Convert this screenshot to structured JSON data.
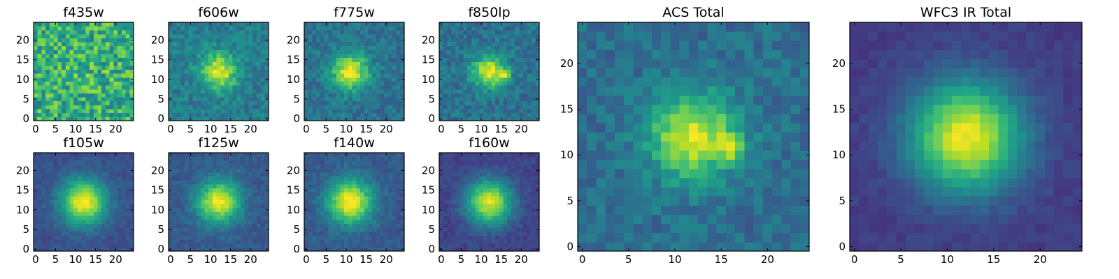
{
  "figure": {
    "colormap": "viridis",
    "grid": false,
    "legend": "none"
  },
  "chart_data": [
    {
      "type": "heatmap",
      "title": "f435w",
      "size": 25,
      "peak": [
        12,
        12
      ],
      "sigma": 5.0,
      "amp": 0.05,
      "noise": 0.45,
      "base": 0.62,
      "extra_peak": null,
      "xticks": [
        0,
        5,
        10,
        15,
        20
      ],
      "yticks": [
        0,
        5,
        10,
        15,
        20
      ],
      "xlim": [
        0,
        24
      ],
      "ylim": [
        0,
        24
      ]
    },
    {
      "type": "heatmap",
      "title": "f606w",
      "size": 25,
      "peak": [
        12,
        12
      ],
      "sigma": 3.2,
      "amp": 0.55,
      "noise": 0.22,
      "base": 0.42,
      "extra_peak": null,
      "xticks": [
        0,
        5,
        10,
        15,
        20
      ],
      "yticks": [
        0,
        5,
        10,
        15,
        20
      ],
      "xlim": [
        0,
        24
      ],
      "ylim": [
        0,
        24
      ]
    },
    {
      "type": "heatmap",
      "title": "f775w",
      "size": 25,
      "peak": [
        11,
        12
      ],
      "sigma": 3.2,
      "amp": 0.6,
      "noise": 0.2,
      "base": 0.38,
      "extra_peak": null,
      "xticks": [
        0,
        5,
        10,
        15,
        20
      ],
      "yticks": [
        0,
        5,
        10,
        15,
        20
      ],
      "xlim": [
        0,
        24
      ],
      "ylim": [
        0,
        24
      ]
    },
    {
      "type": "heatmap",
      "title": "f850lp",
      "size": 25,
      "peak": [
        12,
        12
      ],
      "sigma": 3.0,
      "amp": 0.55,
      "noise": 0.22,
      "base": 0.38,
      "extra_peak": [
        16,
        11
      ],
      "xticks": [
        0,
        5,
        10,
        15,
        20
      ],
      "yticks": [
        0,
        5,
        10,
        15,
        20
      ],
      "xlim": [
        0,
        24
      ],
      "ylim": [
        0,
        24
      ]
    },
    {
      "type": "heatmap",
      "title": "f105w",
      "size": 25,
      "peak": [
        12,
        12
      ],
      "sigma": 4.0,
      "amp": 0.75,
      "noise": 0.1,
      "base": 0.25,
      "extra_peak": null,
      "xticks": [
        0,
        5,
        10,
        15,
        20
      ],
      "yticks": [
        0,
        5,
        10,
        15,
        20
      ],
      "xlim": [
        0,
        24
      ],
      "ylim": [
        0,
        24
      ]
    },
    {
      "type": "heatmap",
      "title": "f125w",
      "size": 25,
      "peak": [
        12,
        12
      ],
      "sigma": 3.8,
      "amp": 0.7,
      "noise": 0.12,
      "base": 0.28,
      "extra_peak": null,
      "xticks": [
        0,
        5,
        10,
        15,
        20
      ],
      "yticks": [
        0,
        5,
        10,
        15,
        20
      ],
      "xlim": [
        0,
        24
      ],
      "ylim": [
        0,
        24
      ]
    },
    {
      "type": "heatmap",
      "title": "f140w",
      "size": 25,
      "peak": [
        11,
        12
      ],
      "sigma": 4.0,
      "amp": 0.72,
      "noise": 0.12,
      "base": 0.28,
      "extra_peak": null,
      "xticks": [
        0,
        5,
        10,
        15,
        20
      ],
      "yticks": [
        0,
        5,
        10,
        15,
        20
      ],
      "xlim": [
        0,
        24
      ],
      "ylim": [
        0,
        24
      ]
    },
    {
      "type": "heatmap",
      "title": "f160w",
      "size": 25,
      "peak": [
        12,
        12
      ],
      "sigma": 4.0,
      "amp": 0.75,
      "noise": 0.1,
      "base": 0.2,
      "extra_peak": null,
      "xticks": [
        0,
        5,
        10,
        15,
        20
      ],
      "yticks": [
        0,
        5,
        10,
        15,
        20
      ],
      "xlim": [
        0,
        24
      ],
      "ylim": [
        0,
        24
      ]
    },
    {
      "type": "heatmap",
      "title": "ACS Total",
      "size": 25,
      "peak": [
        12,
        12
      ],
      "sigma": 3.3,
      "amp": 0.6,
      "noise": 0.18,
      "base": 0.36,
      "extra_peak": [
        16,
        11
      ],
      "xticks": [
        0,
        5,
        10,
        15,
        20
      ],
      "yticks": [
        0,
        5,
        10,
        15,
        20
      ],
      "xlim": [
        0,
        24
      ],
      "ylim": [
        0,
        24
      ]
    },
    {
      "type": "heatmap",
      "title": "WFC3 IR Total",
      "size": 25,
      "peak": [
        12,
        12
      ],
      "sigma": 4.2,
      "amp": 0.8,
      "noise": 0.07,
      "base": 0.18,
      "extra_peak": null,
      "xticks": [
        0,
        5,
        10,
        15,
        20
      ],
      "yticks": [
        0,
        5,
        10,
        15,
        20
      ],
      "xlim": [
        0,
        24
      ],
      "ylim": [
        0,
        24
      ]
    }
  ]
}
